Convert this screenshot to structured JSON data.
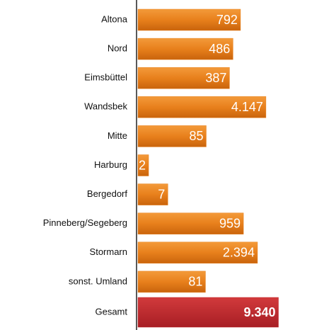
{
  "chart_data": {
    "type": "bar",
    "orientation": "horizontal",
    "log_scale": true,
    "categories": [
      "Altona",
      "Nord",
      "Eimsbüttel",
      "Wandsbek",
      "Mitte",
      "Harburg",
      "Bergedorf",
      "Pinneberg/Segeberg",
      "Stormarn",
      "sonst. Umland",
      "Gesamt"
    ],
    "values": [
      792,
      486,
      387,
      4147,
      85,
      2,
      7,
      959,
      2394,
      81,
      9340
    ],
    "value_labels": [
      "792",
      "486",
      "387",
      "4.147",
      "85",
      "2",
      "7",
      "959",
      "2.394",
      "81",
      "9.340"
    ],
    "colors": [
      "#e8801c",
      "#e8801c",
      "#e8801c",
      "#e8801c",
      "#e8801c",
      "#e8801c",
      "#e8801c",
      "#e8801c",
      "#e8801c",
      "#e8801c",
      "#c42a2e"
    ],
    "xlim": [
      1,
      10000
    ]
  }
}
